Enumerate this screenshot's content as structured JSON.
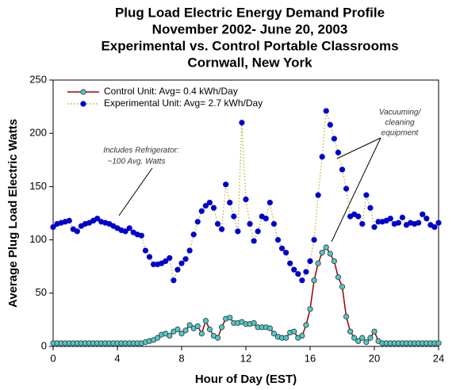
{
  "chart_data": {
    "type": "line",
    "title": [
      "Plug Load Electric Energy Demand Profile",
      "November 2002- June 20, 2003",
      "Experimental vs. Control Portable Classrooms",
      "Cornwall, New York"
    ],
    "xlabel": "Hour of Day (EST)",
    "ylabel": "Average Plug Load Electric Watts",
    "xlim": [
      0,
      24
    ],
    "xticks": [
      0,
      4,
      8,
      12,
      16,
      20,
      24
    ],
    "ylim": [
      0,
      250
    ],
    "yticks": [
      0,
      50,
      100,
      150,
      200,
      250
    ],
    "x": [
      0,
      0.25,
      0.5,
      0.75,
      1,
      1.25,
      1.5,
      1.75,
      2,
      2.25,
      2.5,
      2.75,
      3,
      3.25,
      3.5,
      3.75,
      4,
      4.25,
      4.5,
      4.75,
      5,
      5.25,
      5.5,
      5.75,
      6,
      6.25,
      6.5,
      6.75,
      7,
      7.25,
      7.5,
      7.75,
      8,
      8.25,
      8.5,
      8.75,
      9,
      9.25,
      9.5,
      9.75,
      10,
      10.25,
      10.5,
      10.75,
      11,
      11.25,
      11.5,
      11.75,
      12,
      12.25,
      12.5,
      12.75,
      13,
      13.25,
      13.5,
      13.75,
      14,
      14.25,
      14.5,
      14.75,
      15,
      15.25,
      15.5,
      15.75,
      16,
      16.25,
      16.5,
      16.75,
      17,
      17.25,
      17.5,
      17.75,
      18,
      18.25,
      18.5,
      18.75,
      19,
      19.25,
      19.5,
      19.75,
      20,
      20.25,
      20.5,
      20.75,
      21,
      21.25,
      21.5,
      21.75,
      22,
      22.25,
      22.5,
      22.75,
      23,
      23.25,
      23.5,
      23.75,
      24
    ],
    "series": [
      {
        "name": "Control Unit: Avg= 0.4 kWh/Day",
        "color": "#990000",
        "marker_color": "#4fc8c8",
        "line_style": "solid",
        "values": [
          3,
          3,
          3,
          3,
          3,
          3,
          3,
          3,
          3,
          3,
          3,
          3,
          3,
          3,
          3,
          3,
          3,
          3,
          3,
          3,
          3,
          3,
          3,
          4,
          5,
          6,
          8,
          11,
          12,
          10,
          14,
          16,
          12,
          15,
          20,
          17,
          19,
          12,
          24,
          16,
          10,
          8,
          18,
          26,
          27,
          22,
          22,
          23,
          21,
          21,
          22,
          18,
          18,
          18,
          17,
          12,
          9,
          8,
          8,
          13,
          14,
          8,
          10,
          20,
          35,
          62,
          78,
          88,
          93,
          87,
          80,
          65,
          56,
          28,
          14,
          8,
          5,
          8,
          4,
          8,
          14,
          5,
          3,
          3,
          3,
          3,
          3,
          3,
          3,
          3,
          3,
          3,
          3,
          3,
          3,
          3,
          3
        ]
      },
      {
        "name": "Experimental Unit: Avg= 2.7 kWh/Day",
        "color": "#b5b530",
        "marker_color": "#0000cc",
        "line_style": "dotted",
        "values": [
          112,
          115,
          116,
          117,
          118,
          110,
          108,
          113,
          115,
          116,
          118,
          120,
          117,
          116,
          115,
          113,
          111,
          109,
          108,
          111,
          107,
          105,
          104,
          90,
          84,
          77,
          77,
          78,
          80,
          83,
          62,
          72,
          78,
          82,
          90,
          105,
          117,
          127,
          132,
          135,
          130,
          115,
          110,
          152,
          135,
          122,
          108,
          210,
          138,
          115,
          99,
          108,
          122,
          120,
          135,
          115,
          100,
          92,
          88,
          78,
          72,
          68,
          62,
          70,
          80,
          100,
          142,
          178,
          221,
          208,
          195,
          182,
          166,
          148,
          122,
          124,
          122,
          115,
          142,
          130,
          112,
          117,
          117,
          118,
          120,
          115,
          116,
          121,
          114,
          116,
          115,
          116,
          124,
          120,
          114,
          112,
          116
        ]
      }
    ],
    "legend_position": "upper left",
    "annotations": [
      [
        "Includes Refrigerator:",
        "~100 Avg. Watts"
      ],
      [
        "Vacuuming/",
        "cleaning",
        "equipment"
      ]
    ]
  }
}
